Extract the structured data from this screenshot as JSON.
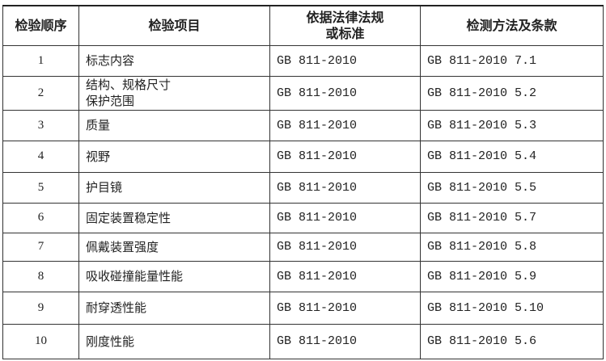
{
  "headers": [
    "检验顺序",
    "检验项目",
    "依据法律法规\n或标准",
    "检测方法及条款"
  ],
  "header_law_line1": "依据法律法规",
  "header_law_line2": "或标准",
  "rows": [
    {
      "no": "1",
      "item": "标志内容",
      "standard": "GB 811-2010",
      "method": "GB 811-2010 7.1"
    },
    {
      "no": "2",
      "item": "结构、规格尺寸",
      "item2": "保护范围",
      "standard": "GB 811-2010",
      "method": "GB 811-2010 5.2"
    },
    {
      "no": "3",
      "item": "质量",
      "standard": "GB 811-2010",
      "method": "GB 811-2010 5.3"
    },
    {
      "no": "4",
      "item": "视野",
      "standard": "GB 811-2010",
      "method": "GB 811-2010 5.4"
    },
    {
      "no": "5",
      "item": "护目镜",
      "standard": "GB 811-2010",
      "method": "GB 811-2010 5.5"
    },
    {
      "no": "6",
      "item": "固定装置稳定性",
      "standard": "GB 811-2010",
      "method": "GB 811-2010 5.7"
    },
    {
      "no": "7",
      "item": "佩戴装置强度",
      "standard": "GB 811-2010",
      "method": "GB 811-2010 5.8"
    },
    {
      "no": "8",
      "item": "吸收碰撞能量性能",
      "standard": "GB 811-2010",
      "method": "GB 811-2010 5.9"
    },
    {
      "no": "9",
      "item": "耐穿透性能",
      "standard": "GB 811-2010",
      "method": "GB 811-2010 5.10"
    },
    {
      "no": "10",
      "item": "刚度性能",
      "standard": "GB 811-2010",
      "method": "GB 811-2010 5.6"
    }
  ]
}
